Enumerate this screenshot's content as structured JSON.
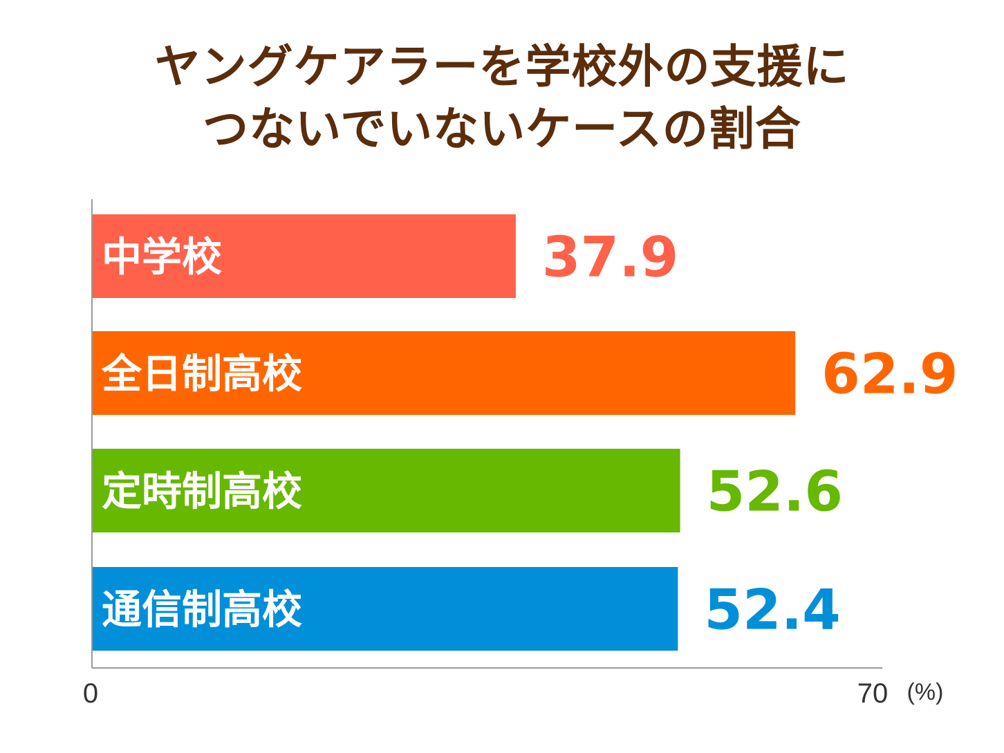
{
  "title_lines": [
    "ヤングケアラーを学校外の支援に",
    "つないでいないケースの割合"
  ],
  "chart_data": {
    "type": "bar",
    "orientation": "horizontal",
    "title": "ヤングケアラーを学校外の支援につないでいないケースの割合",
    "categories": [
      "中学校",
      "全日制高校",
      "定時制高校",
      "通信制高校"
    ],
    "values": [
      37.9,
      62.9,
      52.6,
      52.4
    ],
    "value_labels": [
      "37.9",
      "62.9",
      "52.6",
      "52.4"
    ],
    "colors": [
      "#ff614a",
      "#ff6600",
      "#66b800",
      "#008fd8"
    ],
    "xlim": [
      0,
      70
    ],
    "x_ticks": [
      "0",
      "70"
    ],
    "unit": "(%)",
    "grid": false,
    "legend": "none"
  }
}
